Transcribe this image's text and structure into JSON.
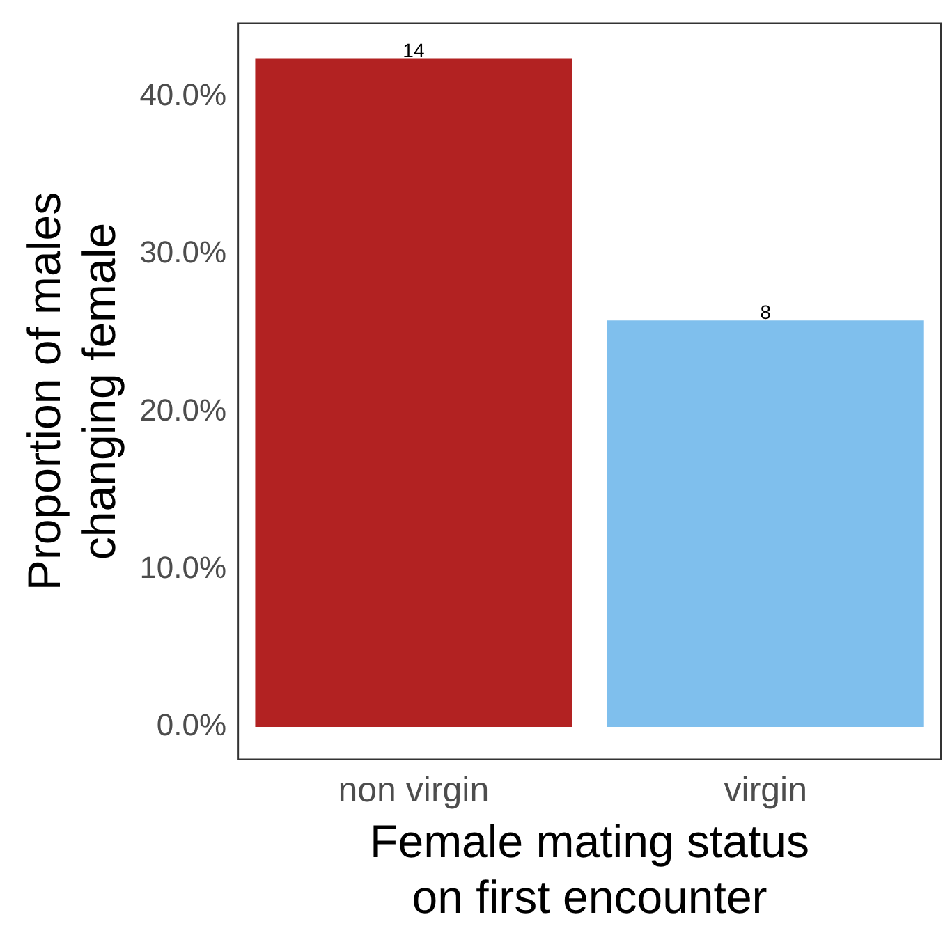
{
  "chart_data": {
    "type": "bar",
    "xlabel": "Female mating status\non first encounter",
    "ylabel": "Proportion of males\nchanging female",
    "categories": [
      "non virgin",
      "virgin"
    ],
    "values": [
      42.4,
      25.8
    ],
    "colors": [
      "#b22222",
      "#7fbfed"
    ],
    "annotations": [
      {
        "text": "14",
        "x": "non virgin",
        "y": 42.4
      },
      {
        "text": "8",
        "x": "virgin",
        "y": 25.8
      }
    ],
    "ylim": [
      -2.1,
      44.7
    ],
    "yticks": [
      {
        "value": 0,
        "label": "0.0%"
      },
      {
        "value": 10,
        "label": "10.0%"
      },
      {
        "value": 20,
        "label": "20.0%"
      },
      {
        "value": 30,
        "label": "30.0%"
      },
      {
        "value": 40,
        "label": "40.0%"
      }
    ],
    "grid": false,
    "legend": false
  }
}
